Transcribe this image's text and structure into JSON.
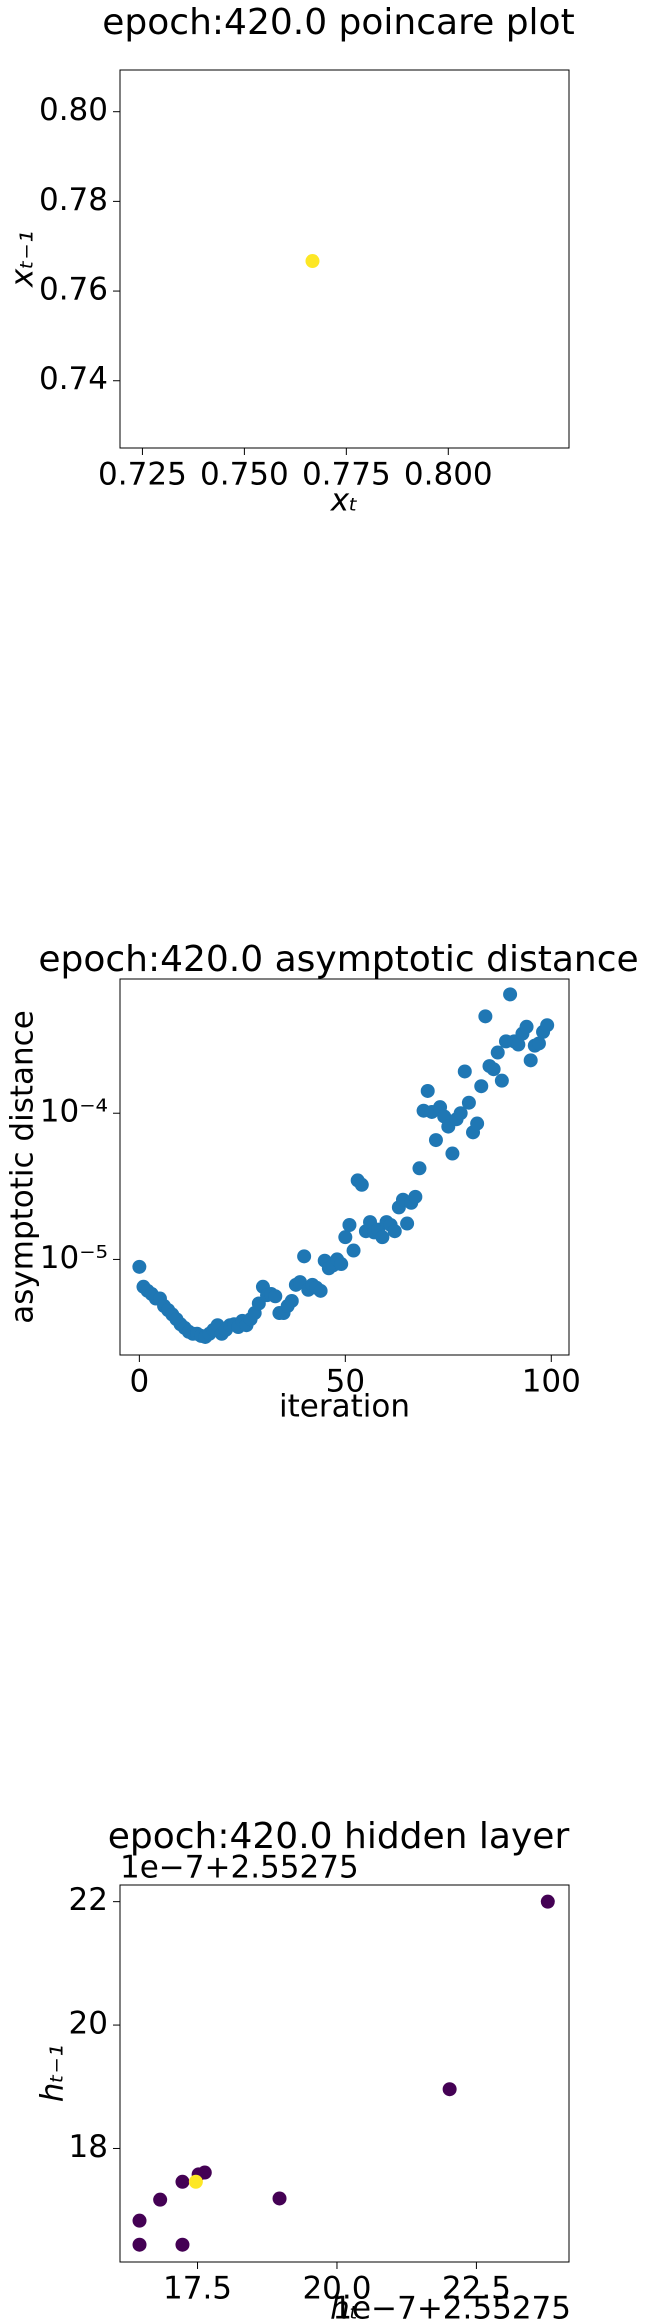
{
  "chart_data": [
    {
      "type": "scatter",
      "title": "epoch:420.0 poincare plot",
      "xlabel": "xₜ",
      "ylabel": "xₜ₋₁",
      "x": [
        0.7667
      ],
      "y": [
        0.7667
      ],
      "colors": [
        "#fde725"
      ],
      "xlim": [
        0.7195,
        0.8296
      ],
      "ylim": [
        0.725,
        0.8093
      ],
      "xticks": [
        0.725,
        {
          "value": 0.75,
          "label": "0.750"
        },
        0.775,
        {
          "value": 0.8,
          "label": "0.800"
        }
      ],
      "yticks": [
        0.74,
        0.76,
        0.78,
        {
          "value": 0.8,
          "label": "0.80"
        }
      ]
    },
    {
      "type": "scatter",
      "title": "epoch:420.0 asymptotic distance",
      "xlabel": "iteration",
      "ylabel": "asymptotic distance",
      "log_y": true,
      "color": "#1f77b4",
      "x": [
        0,
        1,
        2,
        3,
        4,
        5,
        6,
        7,
        8,
        9,
        10,
        11,
        12,
        13,
        14,
        15,
        16,
        17,
        18,
        19,
        20,
        21,
        22,
        23,
        24,
        25,
        26,
        27,
        28,
        29,
        30,
        31,
        32,
        33,
        34,
        35,
        36,
        37,
        38,
        39,
        40,
        41,
        42,
        43,
        44,
        45,
        46,
        47,
        48,
        49,
        50,
        51,
        52,
        53,
        54,
        55,
        56,
        57,
        58,
        59,
        60,
        61,
        62,
        63,
        64,
        65,
        66,
        67,
        68,
        69,
        70,
        71,
        72,
        73,
        74,
        75,
        76,
        77,
        78,
        79,
        80,
        81,
        82,
        83,
        84,
        85,
        86,
        87,
        88,
        89,
        90,
        91,
        92,
        93,
        94,
        95,
        96,
        97,
        98,
        99
      ],
      "y": [
        8.9e-06,
        6.5e-06,
        6.1e-06,
        5.8e-06,
        5.4e-06,
        5.4e-06,
        4.8e-06,
        4.5e-06,
        4.2e-06,
        3.9e-06,
        3.6e-06,
        3.4e-06,
        3.2e-06,
        3.1e-06,
        3.1e-06,
        3e-06,
        2.95e-06,
        3.1e-06,
        3.3e-06,
        3.55e-06,
        3.1e-06,
        3.3e-06,
        3.55e-06,
        3.6e-06,
        3.45e-06,
        3.8e-06,
        3.55e-06,
        3.9e-06,
        4.3e-06,
        5e-06,
        6.5e-06,
        5.7e-06,
        5.8e-06,
        5.6e-06,
        4.3e-06,
        4.3e-06,
        4.8e-06,
        5.2e-06,
        6.7e-06,
        7e-06,
        1.05e-05,
        6.2e-06,
        6.7e-06,
        6.4e-06,
        6.1e-06,
        9.8e-06,
        8.7e-06,
        9.1e-06,
        1e-05,
        9.3e-06,
        1.42e-05,
        1.72e-05,
        1.15e-05,
        3.47e-05,
        3.24e-05,
        1.56e-05,
        1.8e-05,
        1.53e-05,
        1.6e-05,
        1.42e-05,
        1.8e-05,
        1.72e-05,
        1.56e-05,
        2.27e-05,
        2.56e-05,
        1.76e-05,
        2.44e-05,
        2.68e-05,
        4.2e-05,
        0.000104,
        0.000142,
        0.000102,
        6.55e-05,
        0.00011,
        9.5e-05,
        8.1e-05,
        5.3e-05,
        9.1e-05,
        0.0001,
        0.000193,
        0.000118,
        7.4e-05,
        8.5e-05,
        0.000153,
        0.00046,
        0.00021,
        0.0002,
        0.00026,
        0.000167,
        0.00031,
        0.00065,
        0.00031,
        0.000295,
        0.00035,
        0.00039,
        0.00023,
        0.00029,
        0.0003,
        0.00036,
        0.0004
      ],
      "xlim": [
        -4.7,
        104.3
      ],
      "ylim": [
        2.22e-06,
        0.000828
      ],
      "xticks": [
        0,
        50,
        100
      ],
      "yticks": [
        {
          "value": 1e-05,
          "label": "10⁻⁵"
        },
        {
          "value": 0.0001,
          "label": "10⁻⁴"
        }
      ]
    },
    {
      "type": "scatter",
      "title": "epoch:420.0 hidden layer",
      "xlabel": "hₜ",
      "ylabel": "hₜ₋₁",
      "x_offset": "1e−7+2.55275",
      "y_offset": "1e−7+2.55275",
      "x": [
        16.46,
        16.46,
        16.83,
        17.23,
        17.23,
        17.52,
        17.63,
        18.97,
        22.02,
        23.78,
        17.47
      ],
      "y": [
        16.83,
        16.44,
        17.17,
        17.46,
        16.44,
        17.58,
        17.61,
        17.19,
        18.96,
        22.0,
        17.46
      ],
      "colors": [
        "#440154",
        "#440154",
        "#440154",
        "#440154",
        "#440154",
        "#440154",
        "#440154",
        "#440154",
        "#440154",
        "#440154",
        "#fde725"
      ],
      "xlim": [
        16.11,
        24.16
      ],
      "ylim": [
        16.16,
        22.27
      ],
      "xticks": [
        17.5,
        {
          "value": 20,
          "label": "20.0"
        },
        22.5
      ],
      "yticks": [
        18,
        20,
        22
      ]
    }
  ]
}
